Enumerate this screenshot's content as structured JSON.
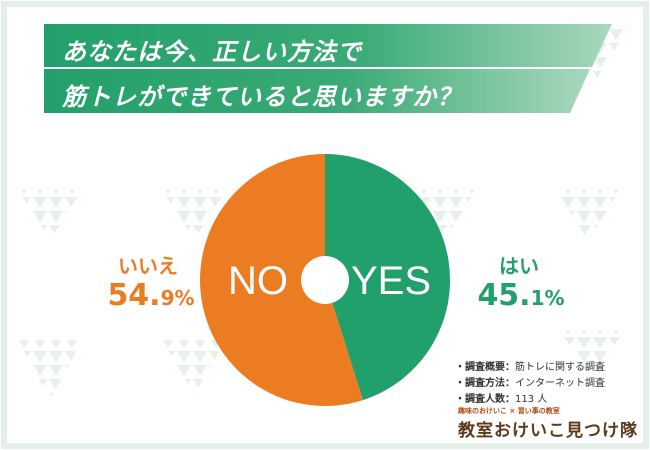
{
  "title_lines": [
    "あなたは今、正しい方法で",
    "筋トレができていると思いますか？"
  ],
  "chart_data": {
    "type": "pie",
    "style": "donut",
    "slices": [
      {
        "label": "はい",
        "inner_label": "YES",
        "value": 45.1,
        "pct_whole": "45.",
        "pct_frac": "1%",
        "color": "#22a06b"
      },
      {
        "label": "いいえ",
        "inner_label": "NO",
        "value": 54.9,
        "pct_whole": "54.",
        "pct_frac": "9%",
        "color": "#ec7c22"
      }
    ]
  },
  "survey": [
    {
      "key": "・調査概要：",
      "value": "筋トレに関する調査"
    },
    {
      "key": "・調査方法：",
      "value": "インターネット調査"
    },
    {
      "key": "・調査人数：",
      "value": "113 人"
    }
  ],
  "logo": {
    "top": "趣味のおけいこ × 習い事の教室",
    "main": "教室おけいこ見つけ隊"
  },
  "colors": {
    "green": "#22a06b",
    "orange": "#ec7c22",
    "pattern": "#e6f1ea"
  }
}
